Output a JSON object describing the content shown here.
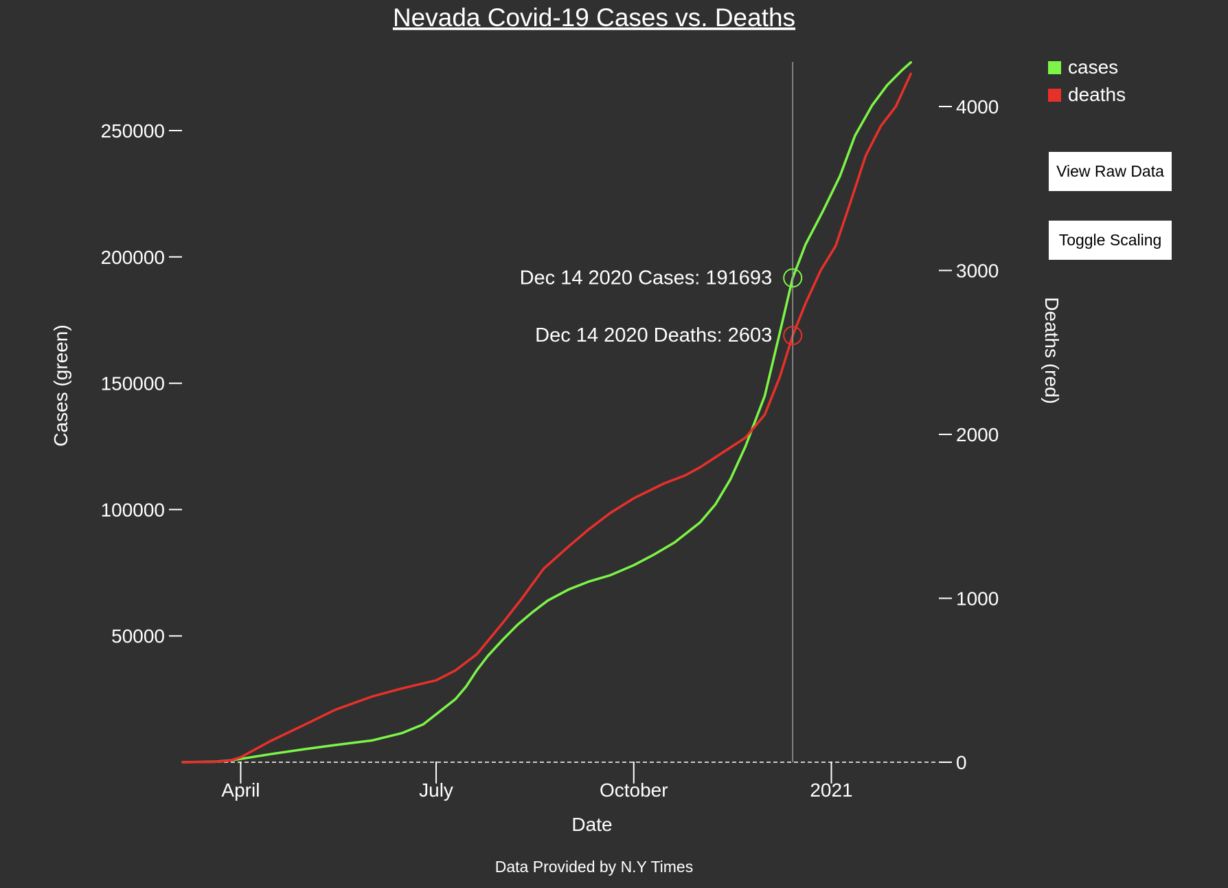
{
  "chart_data": {
    "type": "line",
    "title": "Nevada Covid-19 Cases vs. Deaths",
    "xlabel": "Date",
    "ylabel_left": "Cases (green)",
    "ylabel_right": "Deaths (red)",
    "x_tick_labels": [
      "April",
      "July",
      "October",
      "2021"
    ],
    "x_tick_dates": [
      "2020-04-01",
      "2020-07-01",
      "2020-10-01",
      "2021-01-01"
    ],
    "xlim": [
      "2020-03-05",
      "2021-02-21"
    ],
    "y_left_ticks": [
      50000,
      100000,
      150000,
      200000,
      250000
    ],
    "y_left_lim": [
      0,
      250000
    ],
    "y_right_ticks": [
      0,
      1000,
      2000,
      3000,
      4000
    ],
    "y_right_lim": [
      0,
      4000
    ],
    "grid": false,
    "legend_position": "top-right",
    "series": [
      {
        "name": "cases",
        "axis": "left",
        "color": "#7cf547",
        "points": [
          [
            "2020-03-05",
            0
          ],
          [
            "2020-03-20",
            200
          ],
          [
            "2020-03-27",
            700
          ],
          [
            "2020-04-01",
            1300
          ],
          [
            "2020-04-15",
            3200
          ],
          [
            "2020-05-01",
            5200
          ],
          [
            "2020-05-15",
            6800
          ],
          [
            "2020-06-01",
            8600
          ],
          [
            "2020-06-15",
            11500
          ],
          [
            "2020-06-25",
            15000
          ],
          [
            "2020-07-01",
            19000
          ],
          [
            "2020-07-10",
            25000
          ],
          [
            "2020-07-15",
            30000
          ],
          [
            "2020-07-20",
            36500
          ],
          [
            "2020-07-25",
            42000
          ],
          [
            "2020-08-01",
            48500
          ],
          [
            "2020-08-08",
            54500
          ],
          [
            "2020-08-15",
            59500
          ],
          [
            "2020-08-22",
            64000
          ],
          [
            "2020-09-01",
            68500
          ],
          [
            "2020-09-10",
            71500
          ],
          [
            "2020-09-20",
            74000
          ],
          [
            "2020-10-01",
            78000
          ],
          [
            "2020-10-10",
            82000
          ],
          [
            "2020-10-20",
            87000
          ],
          [
            "2020-11-01",
            95000
          ],
          [
            "2020-11-08",
            102000
          ],
          [
            "2020-11-15",
            112000
          ],
          [
            "2020-11-22",
            125000
          ],
          [
            "2020-12-01",
            145000
          ],
          [
            "2020-12-08",
            170000
          ],
          [
            "2020-12-14",
            191693
          ],
          [
            "2020-12-20",
            205000
          ],
          [
            "2020-12-28",
            218000
          ],
          [
            "2021-01-05",
            232000
          ],
          [
            "2021-01-12",
            248000
          ],
          [
            "2021-01-20",
            260000
          ],
          [
            "2021-01-27",
            268000
          ],
          [
            "2021-02-03",
            274000
          ],
          [
            "2021-02-07",
            277000
          ]
        ]
      },
      {
        "name": "deaths",
        "axis": "right",
        "color": "#e8302a",
        "points": [
          [
            "2020-03-05",
            0
          ],
          [
            "2020-03-20",
            2
          ],
          [
            "2020-03-27",
            10
          ],
          [
            "2020-04-01",
            30
          ],
          [
            "2020-04-08",
            80
          ],
          [
            "2020-04-15",
            130
          ],
          [
            "2020-05-01",
            230
          ],
          [
            "2020-05-15",
            320
          ],
          [
            "2020-06-01",
            400
          ],
          [
            "2020-06-15",
            450
          ],
          [
            "2020-07-01",
            500
          ],
          [
            "2020-07-10",
            560
          ],
          [
            "2020-07-20",
            660
          ],
          [
            "2020-08-01",
            850
          ],
          [
            "2020-08-10",
            1000
          ],
          [
            "2020-08-20",
            1180
          ],
          [
            "2020-09-01",
            1320
          ],
          [
            "2020-09-10",
            1420
          ],
          [
            "2020-09-20",
            1520
          ],
          [
            "2020-10-01",
            1610
          ],
          [
            "2020-10-15",
            1700
          ],
          [
            "2020-10-25",
            1750
          ],
          [
            "2020-11-01",
            1800
          ],
          [
            "2020-11-08",
            1860
          ],
          [
            "2020-11-15",
            1920
          ],
          [
            "2020-11-22",
            1980
          ],
          [
            "2020-12-01",
            2120
          ],
          [
            "2020-12-08",
            2350
          ],
          [
            "2020-12-14",
            2603
          ],
          [
            "2020-12-20",
            2800
          ],
          [
            "2020-12-27",
            3000
          ],
          [
            "2021-01-03",
            3150
          ],
          [
            "2021-01-10",
            3420
          ],
          [
            "2021-01-17",
            3700
          ],
          [
            "2021-01-24",
            3880
          ],
          [
            "2021-01-31",
            4000
          ],
          [
            "2021-02-07",
            4200
          ]
        ]
      }
    ],
    "annotations": {
      "date": "2020-12-14",
      "cases_label": "Dec 14 2020 Cases: 191693",
      "deaths_label": "Dec 14 2020 Deaths: 2603",
      "cases_value": 191693,
      "deaths_value": 2603
    }
  },
  "legend": [
    {
      "label": "cases",
      "color": "#7cf547"
    },
    {
      "label": "deaths",
      "color": "#e8302a"
    }
  ],
  "buttons": {
    "view_raw": "View Raw Data",
    "toggle_scaling": "Toggle Scaling"
  },
  "footer": "Data Provided by N.Y Times"
}
